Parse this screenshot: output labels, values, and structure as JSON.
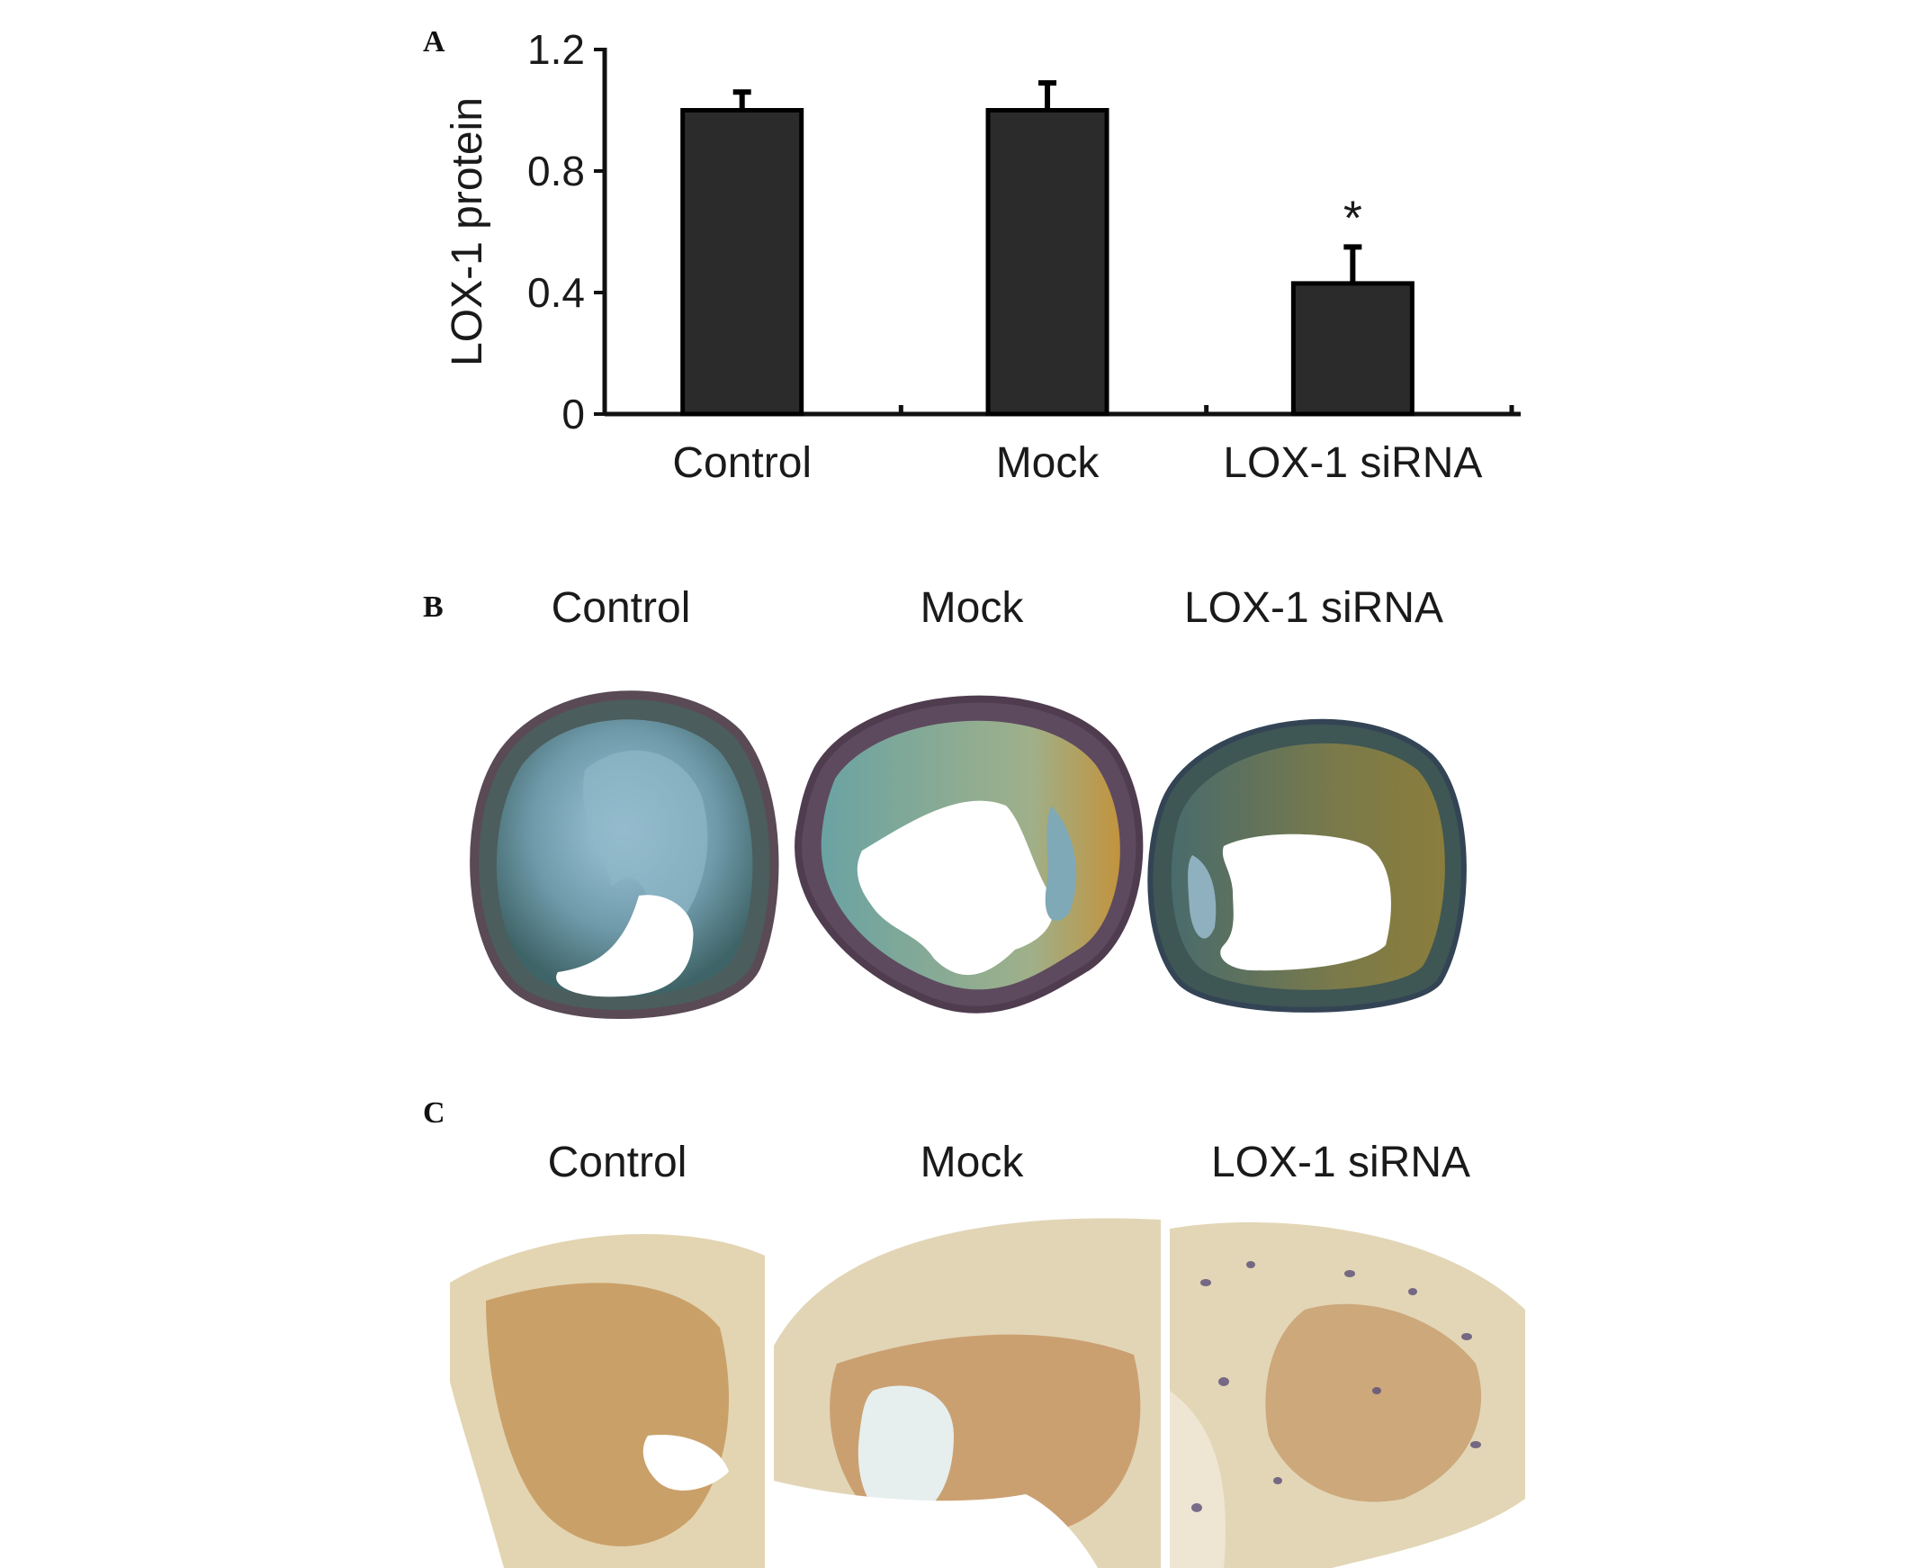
{
  "panels": {
    "a_letter": "A",
    "b_letter": "B",
    "c_letter": "C"
  },
  "chart_data": {
    "type": "bar",
    "title": "",
    "xlabel": "",
    "ylabel": "LOX-1 protein",
    "categories": [
      "Control",
      "Mock",
      "LOX-1 siRNA"
    ],
    "values": [
      1.0,
      1.0,
      0.43
    ],
    "error_plus": [
      0.06,
      0.09,
      0.12
    ],
    "annotations": [
      "",
      "",
      "*"
    ],
    "ylim": [
      0,
      1.2
    ],
    "yticks": [
      "0",
      "0.4",
      "0.8",
      "1.2"
    ],
    "grid": false,
    "bar_color": "#2b2b2b"
  },
  "panel_b": {
    "labels": [
      "Control",
      "Mock",
      "LOX-1 siRNA"
    ],
    "description_colors": {
      "blue_stain": "#7fb0c8",
      "teal_wall": "#3d6b6a",
      "yellow": "#b59a3a"
    }
  },
  "panel_c": {
    "labels": [
      "Control",
      "Mock",
      "LOX-1 siRNA"
    ],
    "description_colors": {
      "brown_stain": "#a8642c",
      "tissue": "#e7dcc0",
      "nuclei": "#5a4d78"
    }
  }
}
